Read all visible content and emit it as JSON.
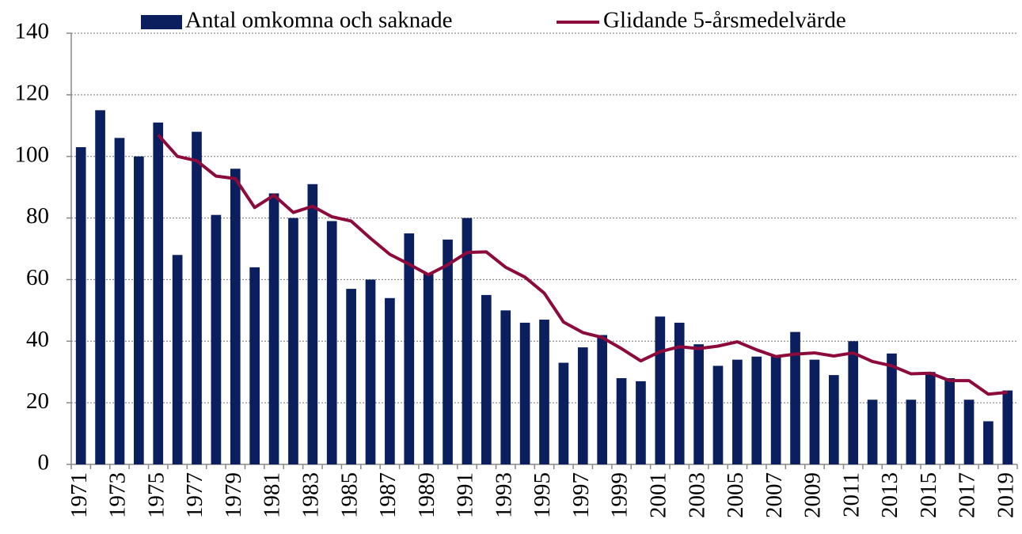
{
  "chart_data": {
    "type": "bar",
    "categories": [
      "1971",
      null,
      "1973",
      null,
      "1975",
      null,
      "1977",
      null,
      "1979",
      null,
      "1981",
      null,
      "1983",
      null,
      "1985",
      null,
      "1987",
      null,
      "1989",
      null,
      "1991",
      null,
      "1993",
      null,
      "1995",
      null,
      "1997",
      null,
      "1999",
      null,
      "2001",
      null,
      "2003",
      null,
      "2005",
      null,
      "2007",
      null,
      "2009",
      null,
      "2011",
      null,
      "2013",
      null,
      "2015",
      null,
      "2017",
      null,
      "2019"
    ],
    "series": [
      {
        "name": "Antal omkomna och saknade",
        "type": "bar",
        "color": "#0b1f5e",
        "values": [
          103,
          115,
          106,
          100,
          111,
          68,
          108,
          81,
          96,
          64,
          88,
          80,
          91,
          79,
          57,
          60,
          54,
          75,
          62,
          73,
          80,
          55,
          50,
          46,
          47,
          33,
          38,
          42,
          28,
          27,
          48,
          46,
          39,
          32,
          34,
          35,
          35,
          43,
          34,
          29,
          40,
          21,
          36,
          21,
          30,
          28,
          21,
          14,
          24
        ]
      },
      {
        "name": "Glidande 5-årsmedelvärde",
        "type": "line",
        "color": "#8c0a3c",
        "values": [
          null,
          null,
          null,
          null,
          107,
          100,
          98.6,
          93.6,
          92.8,
          83.4,
          87.4,
          81.8,
          83.8,
          80.4,
          79,
          73.4,
          68.2,
          65,
          61.6,
          64.8,
          68.8,
          69,
          64,
          60.8,
          55.6,
          46.2,
          42.8,
          41.2,
          37.6,
          33.6,
          36.6,
          38.2,
          37.6,
          38.4,
          39.8,
          37.2,
          35,
          35.8,
          36.2,
          35.2,
          36.2,
          33.4,
          32,
          29.4,
          29.6,
          27.2,
          27.2,
          22.8,
          23.4
        ]
      }
    ],
    "ylim": [
      0,
      140
    ],
    "yticks": [
      0,
      20,
      40,
      60,
      80,
      100,
      120,
      140
    ],
    "grid": true,
    "legend": "top"
  }
}
